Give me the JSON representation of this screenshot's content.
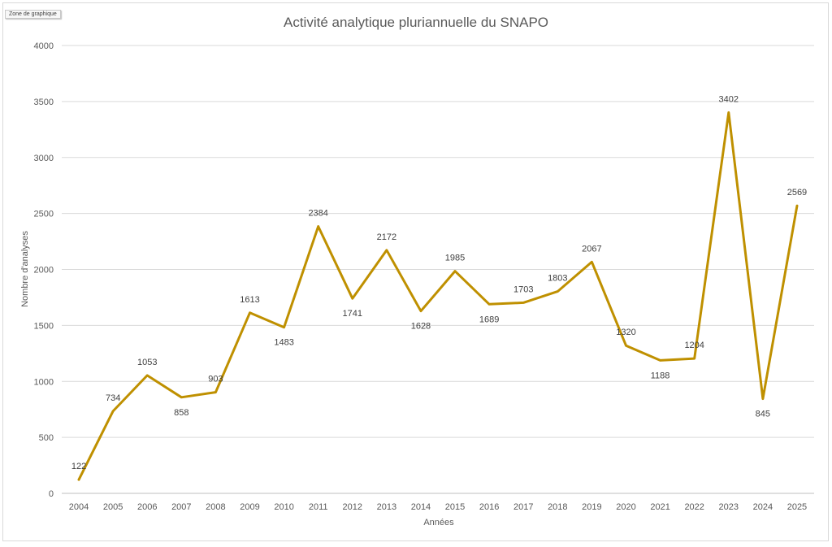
{
  "zone_tag": "Zone de graphique",
  "chart_data": {
    "type": "line",
    "title": "Activité analytique pluriannuelle du SNAPO",
    "xlabel": "Années",
    "ylabel": "Nombre d'analyses",
    "ylim": [
      0,
      4000
    ],
    "yticks": [
      "0",
      "500",
      "1000",
      "1500",
      "2000",
      "2500",
      "3000",
      "3500",
      "4000"
    ],
    "grid": true,
    "legend": "none",
    "line_color": "#BF9000",
    "categories": [
      "2004",
      "2005",
      "2006",
      "2007",
      "2008",
      "2009",
      "2010",
      "2011",
      "2012",
      "2013",
      "2014",
      "2015",
      "2016",
      "2017",
      "2018",
      "2019",
      "2020",
      "2021",
      "2022",
      "2023",
      "2024",
      "2025"
    ],
    "series": [
      {
        "values": [
          122,
          734,
          1053,
          858,
          903,
          1613,
          1483,
          2384,
          1741,
          2172,
          1628,
          1985,
          1689,
          1703,
          1803,
          2067,
          1320,
          1188,
          1204,
          3402,
          845,
          2569
        ]
      }
    ]
  }
}
